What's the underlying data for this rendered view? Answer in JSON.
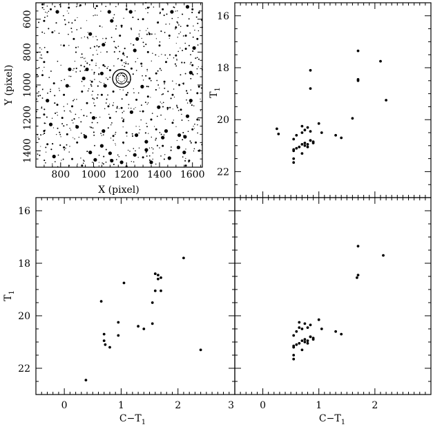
{
  "figure": {
    "ink_color": "#000000",
    "background_color": "#ffffff"
  },
  "chart_data": [
    {
      "type": "scatter",
      "subtype": "sky-image",
      "panel": "top-left",
      "xlabel": "X (pixel)",
      "ylabel": "Y (pixel)",
      "xlim": [
        650,
        1660
      ],
      "ylim": [
        1500,
        500
      ],
      "x_ticks": [
        800,
        1000,
        1200,
        1400,
        1600
      ],
      "y_ticks": [
        600,
        800,
        1000,
        1200,
        1400
      ],
      "marker": {
        "x": 1170,
        "y": 960,
        "shape": "double-circle"
      },
      "stars": {
        "bright": [
          [
            780,
            555
          ],
          [
            1095,
            555
          ],
          [
            1225,
            555
          ],
          [
            1475,
            555
          ],
          [
            1570,
            525
          ],
          [
            1110,
            610
          ],
          [
            980,
            690
          ],
          [
            1265,
            720
          ],
          [
            1060,
            755
          ],
          [
            1250,
            790
          ],
          [
            1610,
            775
          ],
          [
            855,
            905
          ],
          [
            960,
            905
          ],
          [
            1050,
            930
          ],
          [
            940,
            960
          ],
          [
            1590,
            925
          ],
          [
            840,
            1005
          ],
          [
            1070,
            1005
          ],
          [
            1295,
            1010
          ],
          [
            720,
            1095
          ],
          [
            1590,
            1095
          ],
          [
            1230,
            1165
          ],
          [
            1395,
            1135
          ],
          [
            1000,
            1200
          ],
          [
            1570,
            1190
          ],
          [
            740,
            1240
          ],
          [
            900,
            1255
          ],
          [
            1440,
            1280
          ],
          [
            1060,
            1280
          ],
          [
            950,
            1315
          ],
          [
            1420,
            1320
          ],
          [
            1320,
            1345
          ],
          [
            1520,
            1305
          ],
          [
            1555,
            1315
          ],
          [
            1260,
            1305
          ],
          [
            1320,
            1395
          ],
          [
            1515,
            1380
          ],
          [
            1550,
            1410
          ],
          [
            1050,
            1370
          ],
          [
            980,
            1410
          ],
          [
            1100,
            1415
          ],
          [
            1250,
            1425
          ],
          [
            760,
            1435
          ],
          [
            1010,
            1455
          ],
          [
            1460,
            1445
          ],
          [
            1110,
            1460
          ],
          [
            1170,
            1470
          ],
          [
            1350,
            1470
          ]
        ],
        "medium": [
          [
            690,
            510
          ],
          [
            740,
            540
          ],
          [
            850,
            530
          ],
          [
            920,
            515
          ],
          [
            1020,
            520
          ],
          [
            1200,
            540
          ],
          [
            1330,
            530
          ],
          [
            1420,
            540
          ],
          [
            1600,
            540
          ],
          [
            1640,
            560
          ],
          [
            700,
            610
          ],
          [
            1170,
            640
          ],
          [
            1300,
            600
          ],
          [
            1390,
            620
          ],
          [
            1500,
            650
          ],
          [
            1570,
            640
          ],
          [
            1560,
            700
          ],
          [
            1630,
            720
          ],
          [
            750,
            680
          ],
          [
            880,
            720
          ],
          [
            1160,
            700
          ],
          [
            1340,
            690
          ],
          [
            1460,
            700
          ],
          [
            1400,
            760
          ],
          [
            720,
            800
          ],
          [
            820,
            760
          ],
          [
            1180,
            810
          ],
          [
            1330,
            800
          ],
          [
            1500,
            820
          ],
          [
            1560,
            780
          ],
          [
            990,
            850
          ],
          [
            700,
            860
          ],
          [
            1170,
            850
          ],
          [
            1290,
            870
          ],
          [
            1440,
            860
          ],
          [
            1600,
            880
          ],
          [
            1060,
            880
          ],
          [
            1100,
            910
          ],
          [
            1230,
            900
          ],
          [
            1380,
            930
          ],
          [
            690,
            940
          ],
          [
            760,
            990
          ],
          [
            990,
            980
          ],
          [
            1340,
            960
          ],
          [
            1430,
            980
          ],
          [
            1520,
            1000
          ],
          [
            1640,
            1010
          ],
          [
            820,
            1060
          ],
          [
            930,
            1040
          ],
          [
            1050,
            1060
          ],
          [
            1120,
            1040
          ],
          [
            1200,
            1060
          ],
          [
            1260,
            1090
          ],
          [
            1330,
            1070
          ],
          [
            1480,
            1060
          ],
          [
            1630,
            1050
          ],
          [
            780,
            1120
          ],
          [
            870,
            1130
          ],
          [
            960,
            1110
          ],
          [
            1090,
            1130
          ],
          [
            1170,
            1140
          ],
          [
            1300,
            1160
          ],
          [
            1450,
            1140
          ],
          [
            1530,
            1150
          ],
          [
            700,
            1180
          ],
          [
            810,
            1200
          ],
          [
            1100,
            1200
          ],
          [
            1180,
            1220
          ],
          [
            1350,
            1210
          ],
          [
            1480,
            1230
          ],
          [
            1630,
            1210
          ],
          [
            700,
            1280
          ],
          [
            840,
            1300
          ],
          [
            1120,
            1310
          ],
          [
            1200,
            1290
          ],
          [
            1380,
            1270
          ],
          [
            1600,
            1270
          ],
          [
            720,
            1360
          ],
          [
            820,
            1380
          ],
          [
            900,
            1350
          ],
          [
            1180,
            1350
          ],
          [
            1420,
            1370
          ],
          [
            1620,
            1350
          ],
          [
            870,
            1450
          ],
          [
            1300,
            1440
          ],
          [
            1580,
            1460
          ],
          [
            1640,
            1400
          ],
          [
            930,
            1490
          ],
          [
            1200,
            1495
          ],
          [
            1560,
            1490
          ]
        ],
        "faint_count": 600,
        "faint_seed": 20231
      }
    },
    {
      "type": "scatter",
      "panel": "top-right",
      "xlabel": "",
      "ylabel": "T1",
      "ylabel_sub": "1",
      "xlim": [
        -0.5,
        3
      ],
      "ylim": [
        23,
        15.5
      ],
      "x_ticks": [
        0,
        1,
        2,
        3
      ],
      "y_ticks": [
        16,
        18,
        20,
        22
      ],
      "x": [
        1.7,
        2.1,
        0.85,
        0.85,
        1.7,
        1.7,
        2.2,
        1.6,
        0.25,
        0.28,
        0.7,
        0.8,
        0.75,
        0.85,
        1.0,
        1.05,
        0.6,
        0.7,
        0.85,
        0.55,
        0.9,
        0.75,
        0.8,
        1.3,
        1.4,
        0.55,
        0.65,
        0.7,
        0.75,
        0.8,
        0.85,
        0.9,
        0.55,
        0.6,
        0.7,
        0.55,
        0.55
      ],
      "y": [
        17.35,
        17.75,
        18.1,
        18.8,
        18.45,
        18.5,
        19.25,
        19.95,
        20.35,
        20.55,
        20.25,
        20.3,
        20.4,
        20.45,
        20.15,
        20.5,
        20.6,
        20.5,
        20.8,
        20.75,
        20.85,
        20.9,
        20.95,
        20.6,
        20.7,
        21.15,
        21.05,
        20.95,
        21.0,
        21.05,
        20.8,
        20.9,
        21.2,
        21.1,
        21.3,
        21.5,
        21.65
      ]
    },
    {
      "type": "scatter",
      "panel": "bottom-left",
      "xlabel": "C−T1",
      "xlabel_sub": "1",
      "ylabel": "T1",
      "ylabel_sub": "1",
      "xlim": [
        -0.5,
        3
      ],
      "ylim": [
        23,
        15.5
      ],
      "x_ticks": [
        0,
        1,
        2,
        3
      ],
      "y_ticks": [
        16,
        18,
        20,
        22
      ],
      "x": [
        2.1,
        1.05,
        1.6,
        1.65,
        1.65,
        1.7,
        1.6,
        1.7,
        0.65,
        1.55,
        0.95,
        1.55,
        1.3,
        1.4,
        0.7,
        0.95,
        0.7,
        0.72,
        0.8,
        2.4,
        0.38
      ],
      "y": [
        17.8,
        18.75,
        18.4,
        18.45,
        18.6,
        18.55,
        19.05,
        19.05,
        19.45,
        19.5,
        20.25,
        20.3,
        20.4,
        20.5,
        20.7,
        20.75,
        20.95,
        21.1,
        21.2,
        21.3,
        22.45
      ]
    },
    {
      "type": "scatter",
      "panel": "bottom-right",
      "xlabel": "C−T1",
      "xlabel_sub": "1",
      "ylabel": "",
      "xlim": [
        -0.5,
        3
      ],
      "ylim": [
        23,
        15.5
      ],
      "x_ticks": [
        0,
        1,
        2,
        3
      ],
      "y_ticks": [
        16,
        18,
        20,
        22
      ],
      "x": [
        1.7,
        2.15,
        1.7,
        1.68,
        0.65,
        0.75,
        0.8,
        0.85,
        1.0,
        0.65,
        1.05,
        0.6,
        0.7,
        0.85,
        0.55,
        0.9,
        0.75,
        0.8,
        1.3,
        1.4,
        0.55,
        0.65,
        0.7,
        0.75,
        0.8,
        0.85,
        0.9,
        0.55,
        0.6,
        0.7,
        0.55,
        0.55
      ],
      "y": [
        17.35,
        17.7,
        18.45,
        18.55,
        20.25,
        20.3,
        20.45,
        20.35,
        20.15,
        20.45,
        20.5,
        20.6,
        20.5,
        20.8,
        20.75,
        20.85,
        20.9,
        20.95,
        20.6,
        20.7,
        21.15,
        21.05,
        20.95,
        21.0,
        21.05,
        20.8,
        20.9,
        21.2,
        21.1,
        21.3,
        21.5,
        21.65
      ]
    }
  ]
}
